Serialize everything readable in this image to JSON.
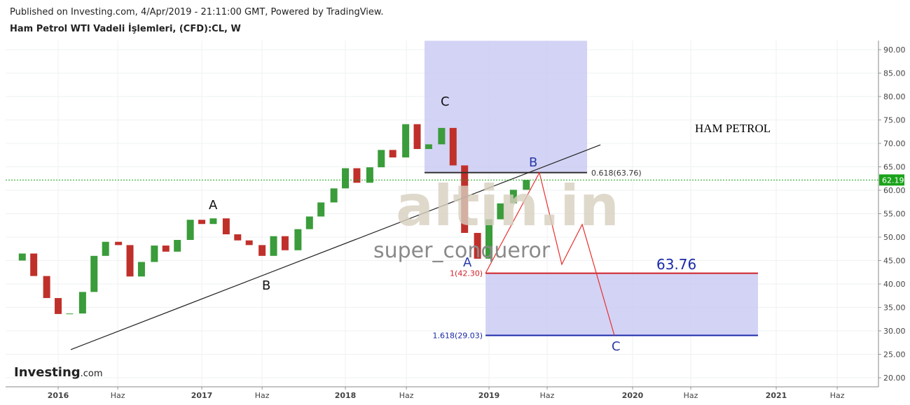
{
  "header": {
    "published": "Published on Investing.com, 4/Apr/2019 - 21:11:00 GMT, Powered by TradingView.",
    "symbol": "Ham Petrol WTI Vadeli İşlemleri, (CFD):CL, W",
    "logo": "Investing",
    "logo_suffix": ".com"
  },
  "chart_data": {
    "type": "candlestick",
    "x": [
      2015.67,
      2015.75,
      2015.83,
      2015.92,
      2016.0,
      2016.08,
      2016.17,
      2016.25,
      2016.33,
      2016.42,
      2016.5,
      2016.58,
      2016.67,
      2016.75,
      2016.83,
      2016.92,
      2017.0,
      2017.08,
      2017.17,
      2017.25,
      2017.33,
      2017.42,
      2017.5,
      2017.58,
      2017.67,
      2017.75,
      2017.83,
      2017.92,
      2018.0,
      2018.08,
      2018.17,
      2018.25,
      2018.33,
      2018.42,
      2018.5,
      2018.58,
      2018.67,
      2018.75,
      2018.83,
      2018.92,
      2019.0,
      2019.08,
      2019.17,
      2019.26
    ],
    "values": [
      45,
      46.5,
      41.7,
      37,
      33.6,
      33.7,
      38.3,
      46,
      49,
      48.3,
      41.6,
      44.7,
      48.2,
      46.9,
      49.4,
      53.7,
      52.8,
      54,
      50.6,
      49.3,
      48.3,
      46,
      50.2,
      47.2,
      51.7,
      54.4,
      57.4,
      60.4,
      64.7,
      61.6,
      64.9,
      68.6,
      67,
      74.1,
      68.8,
      69.8,
      73.3,
      65.3,
      50.9,
      45.4,
      53.8,
      57.2,
      60.1,
      62.2
    ],
    "up_color": "#3a9c3a",
    "down_color": "#c0302b",
    "xlim": [
      2015.634,
      2021.712
    ],
    "ylim": [
      20,
      90
    ],
    "xticks": [
      {
        "value": 2016,
        "label": "2016"
      },
      {
        "value": 2016.415,
        "label": "Haz"
      },
      {
        "value": 2017,
        "label": "2017"
      },
      {
        "value": 2017.42,
        "label": "Haz"
      },
      {
        "value": 2018,
        "label": "2018"
      },
      {
        "value": 2018.425,
        "label": "Haz"
      },
      {
        "value": 2019,
        "label": "2019"
      },
      {
        "value": 2019.405,
        "label": "Haz"
      },
      {
        "value": 2020,
        "label": "2020"
      },
      {
        "value": 2020.405,
        "label": "Haz"
      },
      {
        "value": 2021,
        "label": "2021"
      },
      {
        "value": 2021.425,
        "label": "Haz"
      }
    ],
    "yticks": [
      {
        "value": 20,
        "label": "20.00"
      },
      {
        "value": 25,
        "label": "25.00"
      },
      {
        "value": 30,
        "label": "30.00"
      },
      {
        "value": 35,
        "label": "35.00"
      },
      {
        "value": 40,
        "label": "40.00"
      },
      {
        "value": 45,
        "label": "45.00"
      },
      {
        "value": 50,
        "label": "50.00"
      },
      {
        "value": 55,
        "label": "55.00"
      },
      {
        "value": 60,
        "label": "60.00"
      },
      {
        "value": 65,
        "label": "65.00"
      },
      {
        "value": 70,
        "label": "70.00"
      },
      {
        "value": 75,
        "label": "75.00"
      },
      {
        "value": 80,
        "label": "80.00"
      },
      {
        "value": 85,
        "label": "85.00"
      },
      {
        "value": 90,
        "label": "90.00"
      }
    ],
    "grid": true,
    "last_price": {
      "value": 62.19,
      "label": "62.19",
      "color": "#1aa31a"
    },
    "trendline": {
      "x": [
        2016.088,
        2019.776
      ],
      "values": [
        26,
        69.7
      ],
      "color": "#222222"
    },
    "zigzag": {
      "x": [
        2018.976,
        2019.351,
        2019.507,
        2019.649,
        2019.873
      ],
      "values": [
        42.3,
        63.76,
        44.2,
        52.7,
        29.03
      ],
      "color": "#e8302f"
    },
    "boxes": [
      {
        "x": [
          2018.551,
          2019.683
        ],
        "values": [
          63.76,
          91.9
        ]
      },
      {
        "x": [
          2018.976,
          2020.873
        ],
        "values": [
          29.03,
          42.3
        ]
      }
    ],
    "box_color": "#c8c8f2",
    "levels": [
      {
        "x": [
          2018.551,
          2019.683
        ],
        "value": 63.76,
        "label": "0.618(63.76)",
        "color": "#333333"
      },
      {
        "x": [
          2018.976,
          2020.873
        ],
        "value": 42.3,
        "label": "1(42.30)",
        "color": "#d0202a"
      },
      {
        "x": [
          2018.976,
          2020.873
        ],
        "value": 29.03,
        "label": "1.618(29.03)",
        "color": "#1a2aa8"
      }
    ],
    "annotations": {
      "big_value": "63.76",
      "title": "HAM PETROL",
      "wave_a1": "A",
      "wave_b1": "B",
      "wave_c1": "C",
      "wave_a2": "A",
      "wave_b2": "B",
      "wave_c2": "C",
      "watermark": "altin.in",
      "watermark_user": "super_conqueror"
    }
  }
}
